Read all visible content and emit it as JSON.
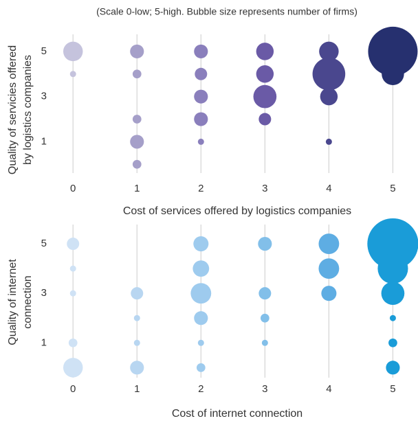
{
  "chart_data": [
    {
      "type": "bubble",
      "subtitle": "(Scale 0-low; 5-high. Bubble size represents number of firms)",
      "xlabel": "Cost of services offered by logistics companies",
      "ylabel": [
        "Quality of servicies offered",
        "by logistics companies"
      ],
      "xlim": [
        -0.4,
        5.35
      ],
      "ylim": [
        -0.6,
        6.0
      ],
      "xticks": [
        0,
        1,
        2,
        3,
        4,
        5
      ],
      "yticks": [
        1,
        3,
        5
      ],
      "grid": true,
      "series": [
        {
          "color": "#c5c3dd",
          "x": [
            0,
            0
          ],
          "values": [
            5,
            4
          ],
          "sizes": [
            10,
            1
          ]
        },
        {
          "color": "#a59fc9",
          "x": [
            1,
            1,
            1,
            1,
            1
          ],
          "values": [
            5,
            4,
            2,
            1,
            0
          ],
          "sizes": [
            5,
            2,
            2,
            5,
            2
          ]
        },
        {
          "color": "#8a7fbc",
          "x": [
            2,
            2,
            2,
            2,
            2
          ],
          "values": [
            5,
            4,
            3,
            2,
            1
          ],
          "sizes": [
            5,
            4,
            5,
            5,
            1
          ]
        },
        {
          "color": "#6a5aa6",
          "x": [
            3,
            3,
            3,
            3
          ],
          "values": [
            5,
            4,
            3,
            2
          ],
          "sizes": [
            8,
            8,
            14,
            4
          ]
        },
        {
          "color": "#4a478e",
          "x": [
            4,
            4,
            4,
            4
          ],
          "values": [
            5,
            4,
            3,
            1
          ],
          "sizes": [
            10,
            28,
            8,
            1
          ]
        },
        {
          "color": "#26306f",
          "x": [
            5,
            5
          ],
          "values": [
            5,
            4
          ],
          "sizes": [
            64,
            13
          ]
        }
      ]
    },
    {
      "type": "bubble",
      "xlabel": "Cost of internet connection",
      "ylabel": [
        "Quality of internet",
        "connection"
      ],
      "xlim": [
        -0.4,
        5.35
      ],
      "ylim": [
        -0.6,
        6.0
      ],
      "xticks": [
        0,
        1,
        2,
        3,
        4,
        5
      ],
      "yticks": [
        1,
        3,
        5
      ],
      "grid": true,
      "series": [
        {
          "color": "#cfe2f5",
          "x": [
            0,
            0,
            0,
            0,
            0
          ],
          "values": [
            5,
            4,
            3,
            1,
            0
          ],
          "sizes": [
            4,
            1,
            1,
            2,
            10
          ]
        },
        {
          "color": "#b8d6f1",
          "x": [
            1,
            1,
            1,
            1
          ],
          "values": [
            3,
            2,
            1,
            0
          ],
          "sizes": [
            4,
            1,
            1,
            5
          ]
        },
        {
          "color": "#9ecbee",
          "x": [
            2,
            2,
            2,
            2,
            2,
            2
          ],
          "values": [
            5,
            4,
            3,
            2,
            1,
            0
          ],
          "sizes": [
            6,
            7,
            11,
            5,
            1,
            2
          ]
        },
        {
          "color": "#82bfe9",
          "x": [
            3,
            3,
            3,
            3
          ],
          "values": [
            5,
            3,
            2,
            1
          ],
          "sizes": [
            5,
            4,
            2,
            1
          ]
        },
        {
          "color": "#5eade3",
          "x": [
            4,
            4,
            4
          ],
          "values": [
            5,
            4,
            3
          ],
          "sizes": [
            11,
            11,
            6
          ]
        },
        {
          "color": "#1a9cd8",
          "x": [
            5,
            5,
            5,
            5,
            5,
            5
          ],
          "values": [
            5,
            4,
            3,
            2,
            1,
            0
          ],
          "sizes": [
            68,
            24,
            14,
            1,
            2,
            5
          ]
        }
      ]
    }
  ]
}
